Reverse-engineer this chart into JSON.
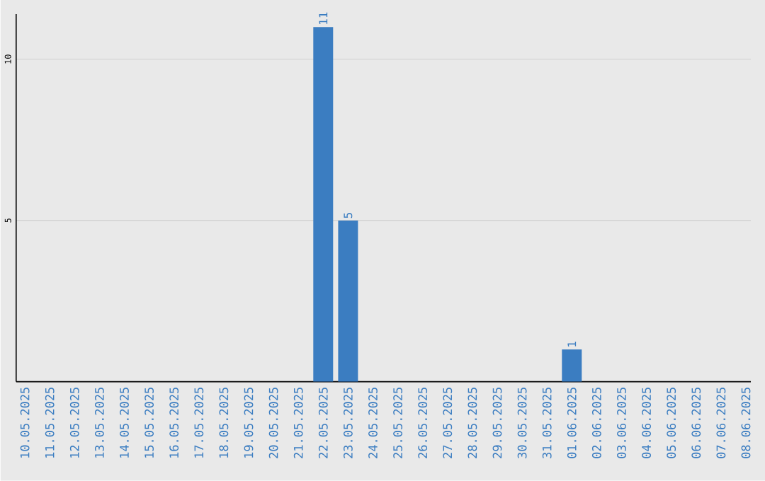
{
  "chart_data": {
    "type": "bar",
    "categories": [
      "10.05.2025",
      "11.05.2025",
      "12.05.2025",
      "13.05.2025",
      "14.05.2025",
      "15.05.2025",
      "16.05.2025",
      "17.05.2025",
      "18.05.2025",
      "19.05.2025",
      "20.05.2025",
      "21.05.2025",
      "22.05.2025",
      "23.05.2025",
      "24.05.2025",
      "25.05.2025",
      "26.05.2025",
      "27.05.2025",
      "28.05.2025",
      "29.05.2025",
      "30.05.2025",
      "31.05.2025",
      "01.06.2025",
      "02.06.2025",
      "03.06.2025",
      "04.06.2025",
      "05.06.2025",
      "06.06.2025",
      "07.06.2025",
      "08.06.2025"
    ],
    "values": [
      0,
      0,
      0,
      0,
      0,
      0,
      0,
      0,
      0,
      0,
      0,
      0,
      11,
      5,
      0,
      0,
      0,
      0,
      0,
      0,
      0,
      0,
      1,
      0,
      0,
      0,
      0,
      0,
      0,
      0
    ],
    "value_labels": [
      null,
      null,
      null,
      null,
      null,
      null,
      null,
      null,
      null,
      null,
      null,
      null,
      "11",
      "5",
      null,
      null,
      null,
      null,
      null,
      null,
      null,
      null,
      "1",
      null,
      null,
      null,
      null,
      null,
      null,
      null
    ],
    "color": "#3b7dc1",
    "ylim": [
      0,
      11.4
    ],
    "yticks": [
      5,
      10
    ],
    "grid": "y"
  }
}
